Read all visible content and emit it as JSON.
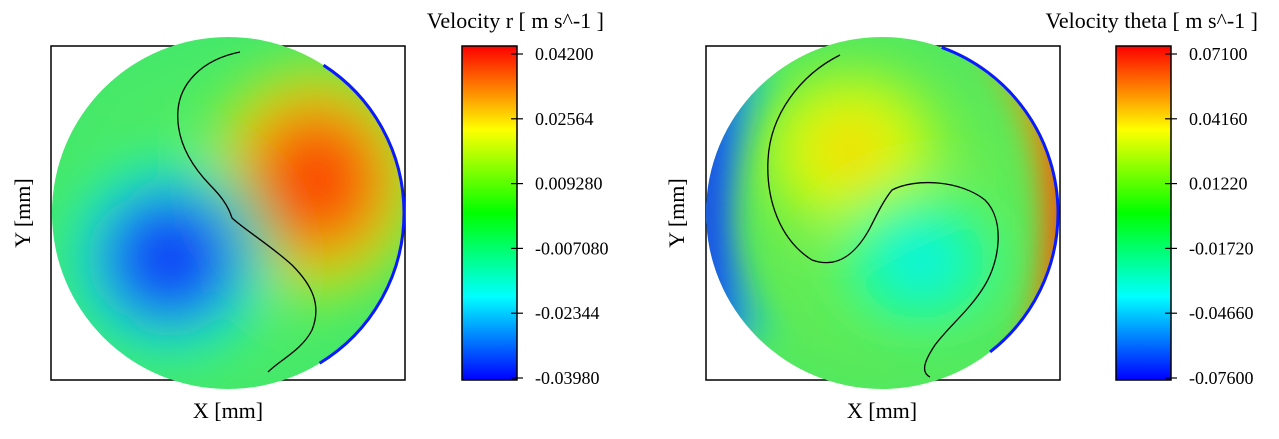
{
  "chart_data": [
    {
      "type": "heatmap",
      "title": "Velocity r [ m s^-1 ]",
      "xlabel": "X [mm]",
      "ylabel": "Y [mm]",
      "colorbar_ticks": [
        "0.04200",
        "0.02564",
        "0.009280",
        "-0.007080",
        "-0.02344",
        "-0.03980"
      ],
      "color_range": [
        -0.0398,
        0.042
      ]
    },
    {
      "type": "heatmap",
      "title": "Velocity theta [ m s^-1 ]",
      "xlabel": "X [mm]",
      "ylabel": "Y [mm]",
      "colorbar_ticks": [
        "0.07100",
        "0.04160",
        "0.01220",
        "-0.01720",
        "-0.04660",
        "-0.07600"
      ],
      "color_range": [
        -0.076,
        0.071
      ]
    }
  ]
}
